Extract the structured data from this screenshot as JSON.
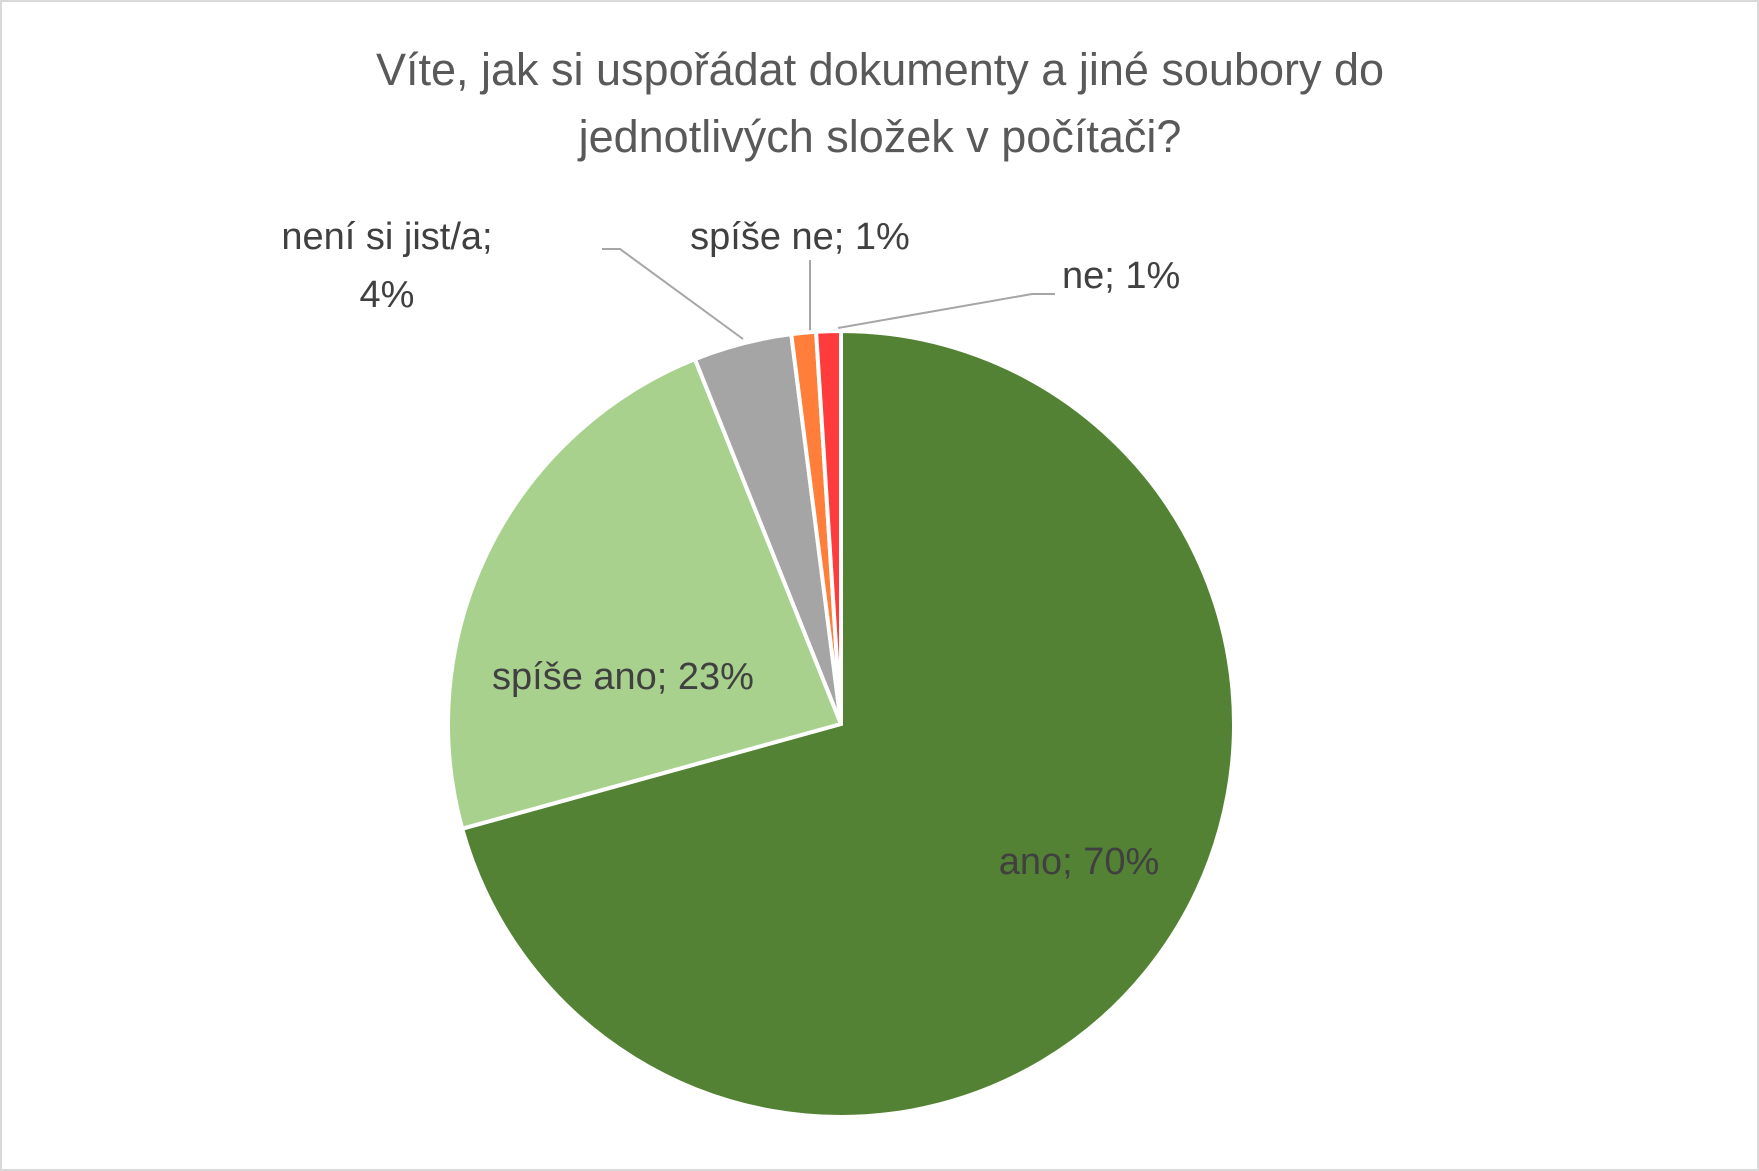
{
  "chart_data": {
    "type": "pie",
    "title": "Víte, jak si uspořádat dokumenty a jiné soubory do\njednotlivých složek v počítači?",
    "categories": [
      "ano",
      "spíše ano",
      "není  si jist/a",
      "spíše ne",
      "ne"
    ],
    "values": [
      70,
      23,
      4,
      1,
      1
    ],
    "value_labels": [
      "ano; 70%",
      "spíše ano; 23%",
      "není  si jist/a;\n4%",
      "spíše ne; 1%",
      "ne; 1%"
    ],
    "colors": [
      "#548235",
      "#a9d18e",
      "#a5a5a5",
      "#ff7f3a",
      "#ff3b3b"
    ]
  }
}
